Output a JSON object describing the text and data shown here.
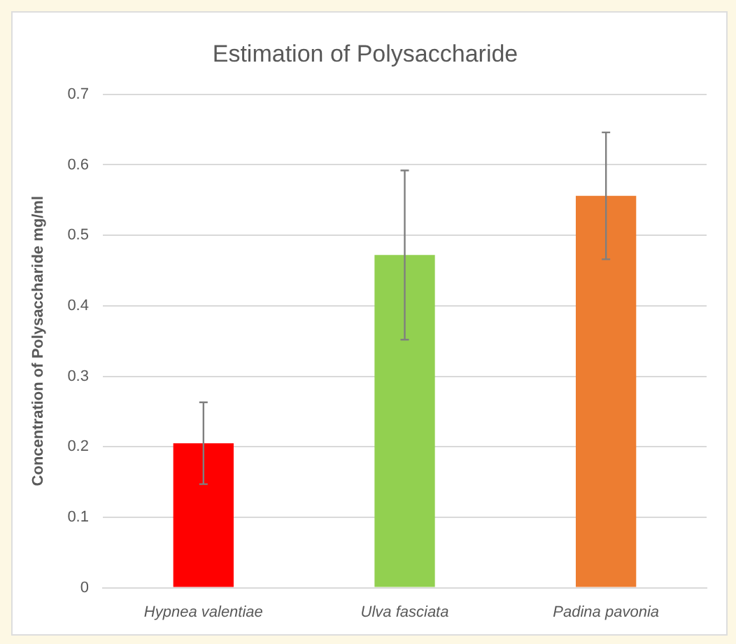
{
  "chart_data": {
    "type": "bar",
    "title": "Estimation of Polysaccharide",
    "ylabel": "Concentration of Polysaccharide mg/ml",
    "categories": [
      "Hypnea valentiae",
      "Ulva fasciata",
      "Padina pavonia"
    ],
    "values": [
      0.205,
      0.472,
      0.556
    ],
    "errors": [
      0.058,
      0.12,
      0.09
    ],
    "colors": [
      "#ff0000",
      "#92d050",
      "#ed7d31"
    ],
    "ylim": [
      0,
      0.7
    ],
    "yticks": [
      0,
      0.1,
      0.2,
      0.3,
      0.4,
      0.5,
      0.6,
      0.7
    ],
    "grid": "y",
    "legend": false
  }
}
